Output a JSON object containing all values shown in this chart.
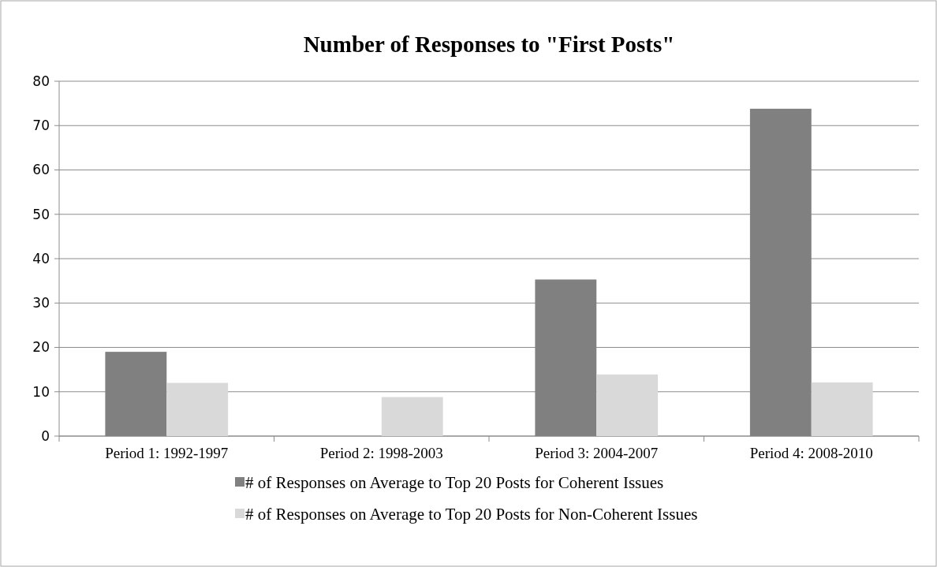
{
  "chart_data": {
    "type": "bar",
    "title": "Number of Responses to \"First Posts\"",
    "categories": [
      "Period 1: 1992-1997",
      "Period 2: 1998-2003",
      "Period 3: 2004-2007",
      "Period 4: 2008-2010"
    ],
    "series": [
      {
        "name": "# of Responses on Average to Top 20 Posts for Coherent Issues",
        "color": "#808080",
        "values": [
          19,
          0,
          35.3,
          73.8
        ]
      },
      {
        "name": "# of Responses on Average to Top 20 Posts for Non-Coherent Issues",
        "color": "#d9d9d9",
        "values": [
          12,
          8.8,
          13.9,
          12.1
        ]
      }
    ],
    "ylim": [
      0,
      80
    ],
    "yticks": [
      0,
      10,
      20,
      30,
      40,
      50,
      60,
      70,
      80
    ],
    "grid": "y",
    "legend": "bottom"
  }
}
